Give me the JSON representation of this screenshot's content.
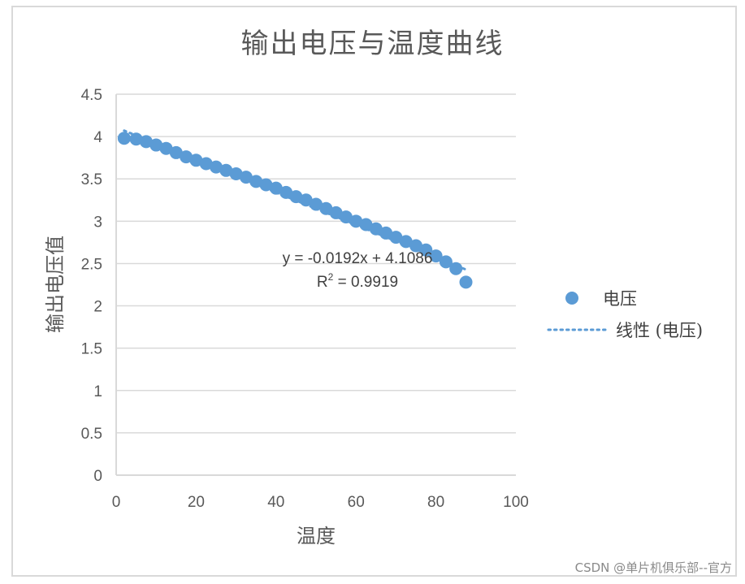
{
  "chart_data": {
    "type": "scatter",
    "title": "输出电压与温度曲线",
    "xlabel": "温度",
    "ylabel": "输出电压值",
    "xlim": [
      0,
      100
    ],
    "ylim": [
      0,
      4.5
    ],
    "x_ticks": [
      "0",
      "20",
      "40",
      "60",
      "80",
      "100"
    ],
    "y_ticks": [
      "0",
      "0.5",
      "1",
      "1.5",
      "2",
      "2.5",
      "3",
      "3.5",
      "4",
      "4.5"
    ],
    "grid": "horizontal",
    "legend_position": "right",
    "series": [
      {
        "name": "电压",
        "marker": "circle",
        "color": "#5b9bd5",
        "x": [
          2,
          5,
          7.5,
          10,
          12.5,
          15,
          17.5,
          20,
          22.5,
          25,
          27.5,
          30,
          32.5,
          35,
          37.5,
          40,
          42.5,
          45,
          47.5,
          50,
          52.5,
          55,
          57.5,
          60,
          62.5,
          65,
          67.5,
          70,
          72.5,
          75,
          77.5,
          80,
          82.5,
          85,
          87.5
        ],
        "y": [
          3.98,
          3.97,
          3.94,
          3.9,
          3.86,
          3.81,
          3.76,
          3.72,
          3.68,
          3.64,
          3.6,
          3.56,
          3.52,
          3.47,
          3.43,
          3.39,
          3.34,
          3.29,
          3.25,
          3.2,
          3.15,
          3.1,
          3.05,
          3.0,
          2.96,
          2.91,
          2.86,
          2.81,
          2.76,
          2.71,
          2.66,
          2.59,
          2.52,
          2.44,
          2.28
        ]
      },
      {
        "name": "线性 (电压)",
        "type": "trendline",
        "style": "dotted",
        "color": "#5b9bd5",
        "slope": -0.0192,
        "intercept": 4.1086,
        "x_range": [
          2,
          87.5
        ]
      }
    ],
    "annotations": [
      "y = -0.0192x + 4.1086",
      "R² = 0.9919"
    ]
  },
  "title": "输出电压与温度曲线",
  "axes": {
    "xlabel": "温度",
    "ylabel": "输出电压值"
  },
  "trendline": {
    "equation": "y = -0.0192x + 4.1086",
    "r2_prefix": "R",
    "r2_sup": "2",
    "r2_value": " = 0.9919"
  },
  "legend": {
    "items": [
      {
        "label": "电压"
      },
      {
        "label": "线性 (电压)"
      }
    ]
  },
  "watermark": "CSDN @单片机俱乐部--官方",
  "colors": {
    "series": "#5b9bd5",
    "grid": "#d9d9d9",
    "text": "#595959"
  }
}
